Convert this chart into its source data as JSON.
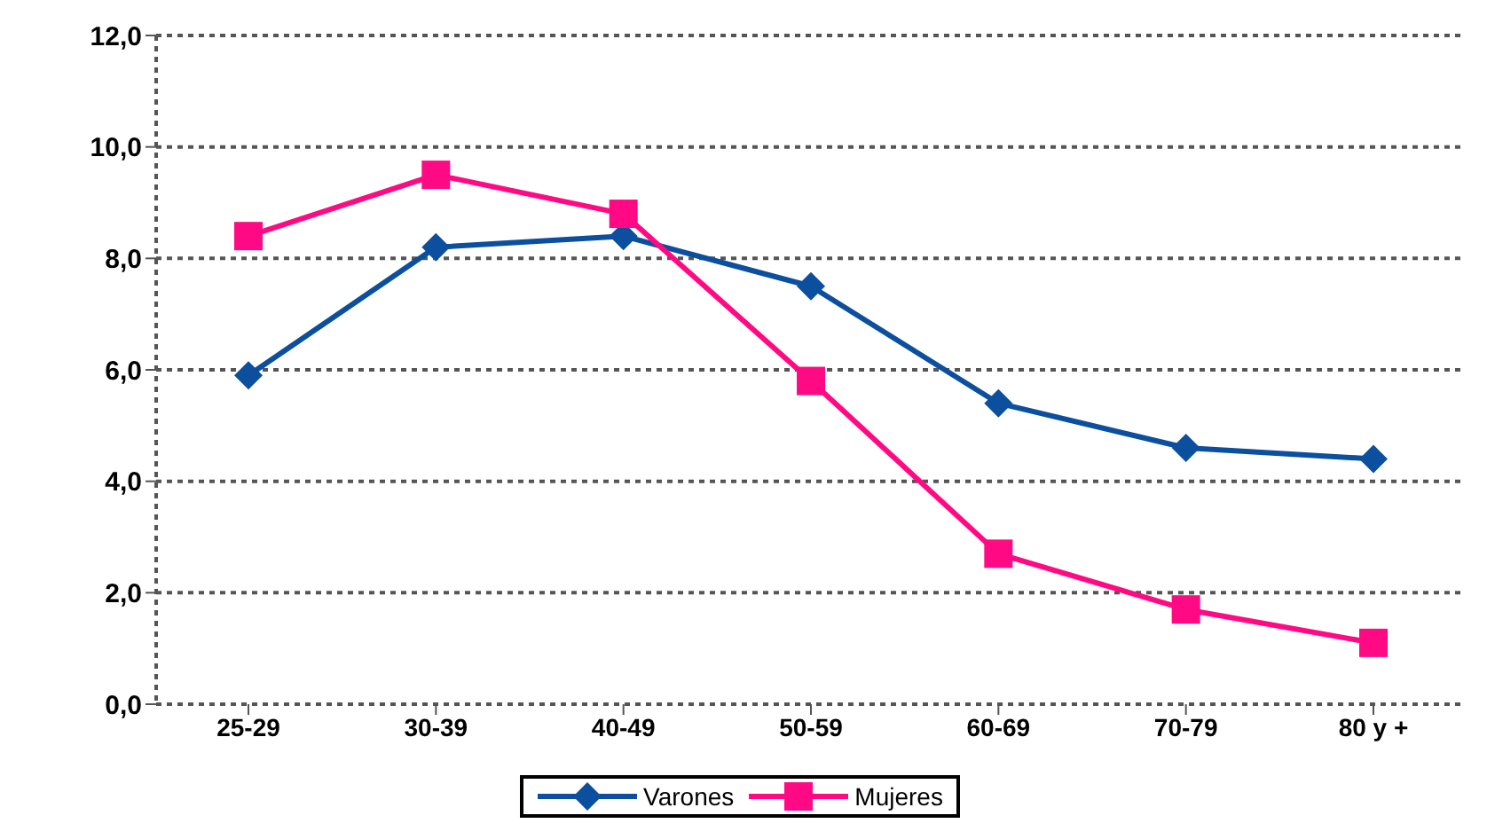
{
  "chart_data": {
    "type": "line",
    "categories": [
      "25-29",
      "30-39",
      "40-49",
      "50-59",
      "60-69",
      "70-79",
      "80 y +"
    ],
    "series": [
      {
        "name": "Varones",
        "color": "#0b4f9e",
        "marker": "diamond",
        "values": [
          5.9,
          8.2,
          8.4,
          7.5,
          5.4,
          4.6,
          4.4
        ]
      },
      {
        "name": "Mujeres",
        "color": "#ff0a84",
        "marker": "square",
        "values": [
          8.4,
          9.5,
          8.8,
          5.8,
          2.7,
          1.7,
          1.1
        ]
      }
    ],
    "ylim": [
      0,
      12
    ],
    "yticks": [
      {
        "value": 0,
        "label": "0,0"
      },
      {
        "value": 2,
        "label": "2,0"
      },
      {
        "value": 4,
        "label": "4,0"
      },
      {
        "value": 6,
        "label": "6,0"
      },
      {
        "value": 8,
        "label": "8,0"
      },
      {
        "value": 10,
        "label": "10,0"
      },
      {
        "value": 12,
        "label": "12,0"
      }
    ],
    "grid": "y",
    "legend": "bottom"
  }
}
